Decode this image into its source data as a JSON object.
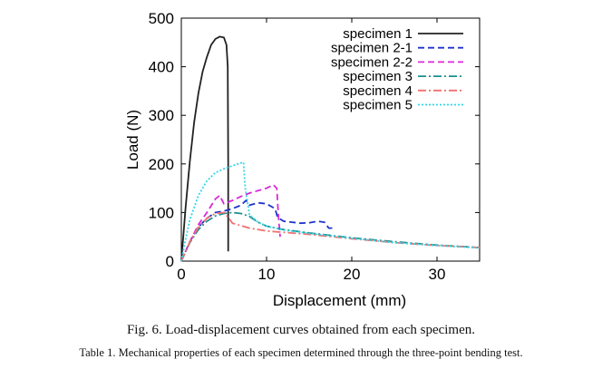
{
  "figure": {
    "caption": "Fig. 6. Load-displacement curves obtained from each specimen.",
    "table_caption": "Table 1. Mechanical properties of each specimen determined through the three-point bending test."
  },
  "chart_data": {
    "type": "line",
    "title": "",
    "xlabel": "Displacement (mm)",
    "ylabel": "Load (N)",
    "xlim": [
      0,
      35
    ],
    "ylim": [
      0,
      500
    ],
    "xticks": [
      0,
      10,
      20,
      30
    ],
    "yticks": [
      0,
      100,
      200,
      300,
      400,
      500
    ],
    "grid": false,
    "legend_position": "top-right",
    "series": [
      {
        "name": "specimen 1",
        "color": "#222222",
        "dash": "solid",
        "x": [
          0,
          0.5,
          1,
          1.5,
          2,
          2.5,
          3,
          3.5,
          4,
          4.5,
          5,
          5.3,
          5.45,
          5.5,
          5.5
        ],
        "y": [
          0,
          110,
          205,
          285,
          345,
          390,
          420,
          445,
          457,
          462,
          460,
          445,
          400,
          200,
          20
        ]
      },
      {
        "name": "specimen 2-1",
        "color": "#1f33cc",
        "dash": "dashed",
        "x": [
          0,
          1,
          2,
          3,
          4,
          5,
          6,
          7,
          7.6,
          8,
          9,
          10,
          11,
          11.3,
          12,
          13,
          14,
          15,
          16,
          16.8,
          17.3,
          18
        ],
        "y": [
          0,
          40,
          70,
          88,
          100,
          103,
          108,
          115,
          125,
          115,
          120,
          118,
          108,
          90,
          82,
          80,
          78,
          79,
          82,
          80,
          68,
          68
        ]
      },
      {
        "name": "specimen 2-2",
        "color": "#d82ad8",
        "dash": "dashed",
        "x": [
          0,
          1,
          2,
          3,
          4,
          4.5,
          5,
          6,
          7,
          8,
          9,
          10,
          10.8,
          11.2,
          11.4,
          11.6
        ],
        "y": [
          0,
          40,
          75,
          100,
          128,
          135,
          118,
          125,
          133,
          140,
          145,
          150,
          157,
          150,
          90,
          50
        ]
      },
      {
        "name": "specimen 3",
        "color": "#1b8f8f",
        "dash": "dashdot",
        "x": [
          0,
          1,
          2,
          3,
          4,
          5,
          6,
          7,
          8,
          9,
          10,
          12,
          15,
          20,
          25,
          30,
          35
        ],
        "y": [
          0,
          38,
          65,
          82,
          93,
          98,
          100,
          98,
          92,
          80,
          72,
          65,
          58,
          48,
          40,
          33,
          28
        ]
      },
      {
        "name": "specimen 4",
        "color": "#f07070",
        "dash": "dashdot",
        "x": [
          0,
          1,
          2,
          3,
          4,
          5,
          5.5,
          6,
          8,
          10,
          15,
          20,
          25,
          30,
          35
        ],
        "y": [
          0,
          40,
          70,
          88,
          98,
          100,
          90,
          78,
          68,
          62,
          55,
          46,
          38,
          32,
          28
        ]
      },
      {
        "name": "specimen 5",
        "color": "#33d6e6",
        "dash": "dotted",
        "x": [
          0,
          0.5,
          1,
          2,
          3,
          4,
          5,
          6,
          7,
          7.3,
          7.5,
          8,
          9,
          10,
          12,
          15,
          20,
          25,
          30,
          35
        ],
        "y": [
          0,
          45,
          85,
          135,
          165,
          182,
          190,
          196,
          202,
          203,
          150,
          95,
          80,
          72,
          64,
          57,
          47,
          38,
          32,
          27
        ]
      }
    ]
  }
}
